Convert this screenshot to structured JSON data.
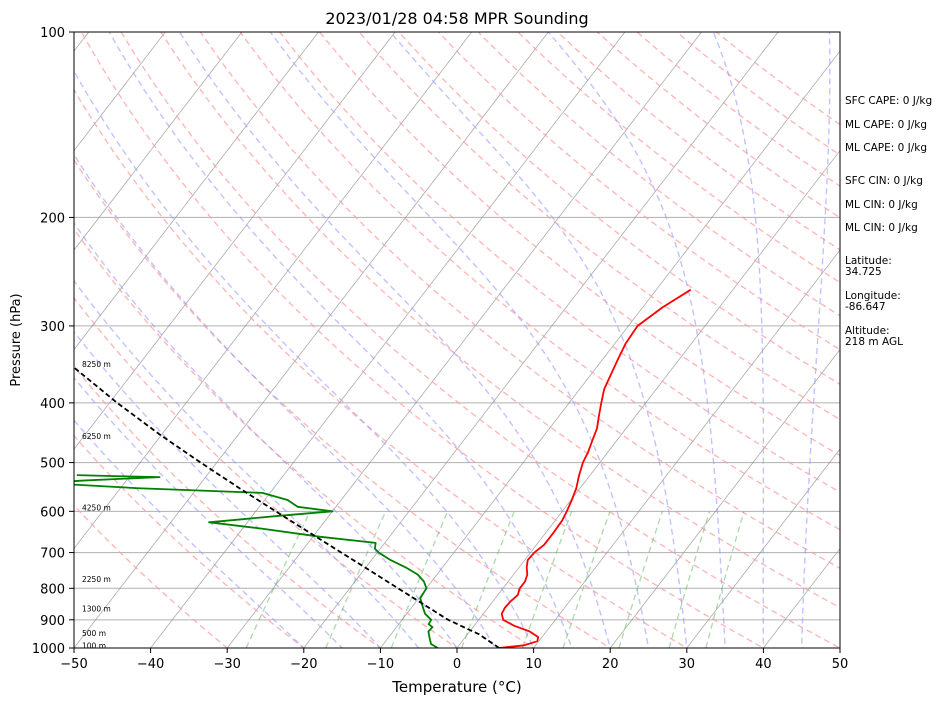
{
  "chart_data": {
    "type": "line",
    "title": "2023/01/28 04:58 MPR Sounding",
    "xlabel": "Temperature (°C)",
    "ylabel": "Pressure (hPa)",
    "x_unit": "°C",
    "y_unit": "hPa",
    "xlim": [
      -50,
      50
    ],
    "ylim": [
      1000,
      100
    ],
    "y_scale": "log",
    "skew": true,
    "grid": true,
    "x_ticks": [
      -50,
      -40,
      -30,
      -20,
      -10,
      0,
      10,
      20,
      30,
      40,
      50
    ],
    "x_tick_labels": [
      "−50",
      "−40",
      "−30",
      "−20",
      "−10",
      "0",
      "10",
      "20",
      "30",
      "40",
      "50"
    ],
    "y_ticks": [
      1000,
      900,
      800,
      700,
      600,
      500,
      400,
      300,
      200,
      100
    ],
    "y_tick_labels": [
      "1000",
      "900",
      "800",
      "700",
      "600",
      "500",
      "400",
      "300",
      "200",
      "100"
    ],
    "series": [
      {
        "name": "temperature",
        "color": "#ff0000",
        "style": "solid",
        "points": [
          [
            1000,
            5.5
          ],
          [
            990,
            8.5
          ],
          [
            975,
            9.8
          ],
          [
            960,
            9.5
          ],
          [
            940,
            7.8
          ],
          [
            920,
            5.2
          ],
          [
            900,
            3.2
          ],
          [
            880,
            2.4
          ],
          [
            860,
            2.2
          ],
          [
            840,
            2.3
          ],
          [
            820,
            2.6
          ],
          [
            800,
            2.2
          ],
          [
            780,
            2.2
          ],
          [
            760,
            1.8
          ],
          [
            740,
            1.0
          ],
          [
            720,
            0.4
          ],
          [
            700,
            0.5
          ],
          [
            680,
            1.0
          ],
          [
            650,
            1.0
          ],
          [
            620,
            0.9
          ],
          [
            600,
            0.6
          ],
          [
            575,
            0.1
          ],
          [
            550,
            -0.5
          ],
          [
            525,
            -1.4
          ],
          [
            500,
            -2.2
          ],
          [
            480,
            -2.6
          ],
          [
            460,
            -3.2
          ],
          [
            440,
            -3.8
          ],
          [
            420,
            -4.8
          ],
          [
            400,
            -5.8
          ],
          [
            380,
            -6.8
          ],
          [
            360,
            -7.4
          ],
          [
            340,
            -8.0
          ],
          [
            320,
            -8.6
          ],
          [
            300,
            -8.8
          ],
          [
            280,
            -7.4
          ],
          [
            262,
            -5.5
          ]
        ]
      },
      {
        "name": "dewpoint",
        "color": "#008000",
        "style": "solid",
        "points": [
          [
            1000,
            -2.5
          ],
          [
            985,
            -3.8
          ],
          [
            960,
            -4.7
          ],
          [
            940,
            -5.4
          ],
          [
            925,
            -5.3
          ],
          [
            915,
            -6.1
          ],
          [
            900,
            -6.2
          ],
          [
            880,
            -7.6
          ],
          [
            860,
            -8.5
          ],
          [
            830,
            -9.8
          ],
          [
            800,
            -10.0
          ],
          [
            780,
            -11.0
          ],
          [
            760,
            -12.5
          ],
          [
            740,
            -14.8
          ],
          [
            720,
            -17.5
          ],
          [
            700,
            -19.8
          ],
          [
            690,
            -20.7
          ],
          [
            675,
            -21.2
          ],
          [
            660,
            -29.0
          ],
          [
            640,
            -37.5
          ],
          [
            625,
            -45.0
          ],
          [
            610,
            -36.5
          ],
          [
            600,
            -30.0
          ],
          [
            590,
            -35.0
          ],
          [
            575,
            -37.0
          ],
          [
            560,
            -41.0
          ],
          [
            550,
            -58.0
          ],
          [
            540,
            -70.0
          ],
          [
            535,
            -66.0
          ],
          [
            528,
            -56.0
          ],
          [
            526,
            -62.0
          ],
          [
            524,
            -67.0
          ]
        ]
      },
      {
        "name": "parcel",
        "color": "#000000",
        "style": "dashed",
        "points": [
          [
            1000,
            5.5
          ],
          [
            950,
            1.5
          ],
          [
            900,
            -4.0
          ],
          [
            850,
            -8.7
          ],
          [
            800,
            -13.7
          ],
          [
            750,
            -19.0
          ],
          [
            700,
            -24.7
          ],
          [
            650,
            -30.8
          ],
          [
            600,
            -37.4
          ],
          [
            550,
            -44.5
          ],
          [
            500,
            -52.1
          ],
          [
            450,
            -60.3
          ],
          [
            400,
            -69.0
          ],
          [
            350,
            -78.3
          ],
          [
            300,
            -88.2
          ],
          [
            265,
            -95.5
          ]
        ]
      }
    ],
    "height_labels": [
      {
        "label": "100 m",
        "p": 990
      },
      {
        "label": "500 m",
        "p": 945
      },
      {
        "label": "1300 m",
        "p": 862
      },
      {
        "label": "2250 m",
        "p": 772
      },
      {
        "label": "4250 m",
        "p": 591
      },
      {
        "label": "6250 m",
        "p": 453
      },
      {
        "label": "8250 m",
        "p": 346
      }
    ],
    "dry_adiabats_theta_c": [
      -30,
      -20,
      -10,
      0,
      10,
      20,
      30,
      40,
      50,
      60,
      70,
      80,
      90,
      100,
      110,
      120,
      130,
      140,
      150,
      160,
      170,
      180,
      190,
      200
    ],
    "moist_adiabats_c": [
      -20,
      -15,
      -10,
      -5,
      0,
      5,
      10,
      15,
      20,
      25,
      30,
      35,
      40,
      45
    ],
    "mixing_ratios_gkg": [
      0.4,
      1,
      2,
      4,
      7,
      10,
      16,
      24,
      32
    ],
    "stats": [
      "SFC CAPE: 0 J/kg",
      "ML CAPE: 0 J/kg",
      "ML CAPE: 0 J/kg",
      "SFC CIN: 0 J/kg",
      "ML CIN: 0 J/kg",
      "ML CIN: 0 J/kg"
    ],
    "location": [
      "Latitude:\n34.725",
      "Longitude:\n-86.647",
      "Altitude:\n218 m AGL"
    ],
    "colors": {
      "dry_adiabat": "#ff9999",
      "moist_adiabat": "#9999ff",
      "mixing_ratio": "#66bb66",
      "isotherm": "#888888",
      "height_label_diag": "#cc66cc"
    }
  }
}
